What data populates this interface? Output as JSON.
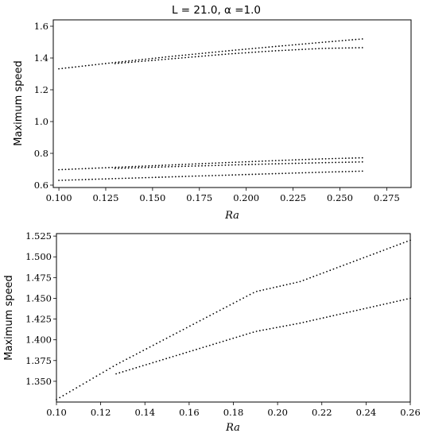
{
  "chart_data": [
    {
      "type": "scatter",
      "title": "L = 21.0, α =1.0",
      "xlabel": "Ra",
      "ylabel": "Maximum speed",
      "xlim": [
        0.097,
        0.288
      ],
      "ylim": [
        0.585,
        1.64
      ],
      "xticks": [
        0.1,
        0.125,
        0.15,
        0.175,
        0.2,
        0.225,
        0.25,
        0.275
      ],
      "xtick_labels": [
        "0.100",
        "0.125",
        "0.150",
        "0.175",
        "0.200",
        "0.225",
        "0.250",
        "0.275"
      ],
      "yticks": [
        0.6,
        0.8,
        1.0,
        1.2,
        1.4,
        1.6
      ],
      "ytick_labels": [
        "0.6",
        "0.8",
        "1.0",
        "1.2",
        "1.4",
        "1.6"
      ],
      "grid": false,
      "series": [
        {
          "x": [
            0.1,
            0.13,
            0.16,
            0.19,
            0.215,
            0.24,
            0.262
          ],
          "y": [
            1.332,
            1.372,
            1.41,
            1.445,
            1.472,
            1.498,
            1.52
          ]
        },
        {
          "x": [
            0.13,
            0.16,
            0.19,
            0.215,
            0.24,
            0.262
          ],
          "y": [
            1.365,
            1.395,
            1.425,
            1.445,
            1.46,
            1.465
          ]
        },
        {
          "x": [
            0.1,
            0.13,
            0.16,
            0.19,
            0.215,
            0.24,
            0.262
          ],
          "y": [
            0.697,
            0.712,
            0.727,
            0.742,
            0.754,
            0.765,
            0.772
          ]
        },
        {
          "x": [
            0.13,
            0.16,
            0.19,
            0.215,
            0.24,
            0.262
          ],
          "y": [
            0.705,
            0.716,
            0.726,
            0.734,
            0.741,
            0.746
          ]
        },
        {
          "x": [
            0.1,
            0.13,
            0.16,
            0.19,
            0.215,
            0.24,
            0.262
          ],
          "y": [
            0.63,
            0.641,
            0.652,
            0.663,
            0.672,
            0.681,
            0.688
          ]
        }
      ]
    },
    {
      "type": "scatter",
      "title": "",
      "xlabel": "Ra",
      "ylabel": "Maximum speed",
      "xlim": [
        0.1,
        0.26
      ],
      "ylim": [
        1.325,
        1.528
      ],
      "xticks": [
        0.1,
        0.12,
        0.14,
        0.16,
        0.18,
        0.2,
        0.22,
        0.24,
        0.26
      ],
      "xtick_labels": [
        "0.10",
        "0.12",
        "0.14",
        "0.16",
        "0.18",
        "0.20",
        "0.22",
        "0.24",
        "0.26"
      ],
      "yticks": [
        1.35,
        1.375,
        1.4,
        1.425,
        1.45,
        1.475,
        1.5,
        1.525
      ],
      "ytick_labels": [
        "1.350",
        "1.375",
        "1.400",
        "1.425",
        "1.450",
        "1.475",
        "1.500",
        "1.525"
      ],
      "grid": false,
      "series": [
        {
          "x": [
            0.1,
            0.127,
            0.19,
            0.21,
            0.24,
            0.26
          ],
          "y": [
            1.328,
            1.37,
            1.458,
            1.47,
            1.5,
            1.52
          ]
        },
        {
          "x": [
            0.127,
            0.19,
            0.21,
            0.26
          ],
          "y": [
            1.359,
            1.41,
            1.42,
            1.45
          ]
        }
      ]
    }
  ]
}
